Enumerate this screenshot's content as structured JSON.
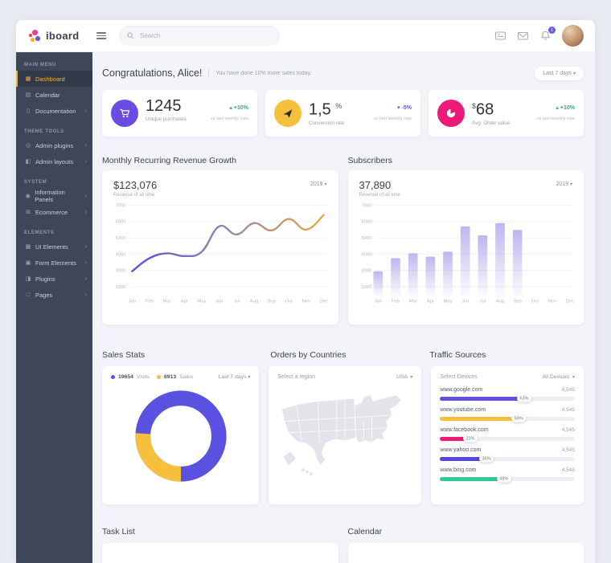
{
  "topbar": {
    "brand": "iboard",
    "search_placeholder": "Search",
    "badge_count": "1",
    "icons": [
      "messages-icon",
      "mail-icon",
      "bell-icon",
      "avatar"
    ]
  },
  "sidebar": {
    "sections": [
      {
        "title": "MAIN MENU",
        "items": [
          {
            "label": "Dashboard",
            "icon": "dashboard-icon",
            "active": true,
            "arrow": false
          },
          {
            "label": "Calendar",
            "icon": "calendar-icon",
            "active": false,
            "arrow": false
          },
          {
            "label": "Documentation",
            "icon": "file-icon",
            "active": false,
            "arrow": true
          }
        ]
      },
      {
        "title": "THEME TOOLS",
        "items": [
          {
            "label": "Admin plugins",
            "icon": "disc-icon",
            "active": false,
            "arrow": true
          },
          {
            "label": "Admin layouts",
            "icon": "layout-icon",
            "active": false,
            "arrow": true
          }
        ]
      },
      {
        "title": "SYSTEM",
        "items": [
          {
            "label": "Information Panels",
            "icon": "info-icon",
            "active": false,
            "arrow": true
          },
          {
            "label": "Ecommerce",
            "icon": "cart-icon",
            "active": false,
            "arrow": true
          }
        ]
      },
      {
        "title": "ELEMENTS",
        "items": [
          {
            "label": "UI Elements",
            "icon": "grid-icon",
            "active": false,
            "arrow": true
          },
          {
            "label": "Form Elements",
            "icon": "form-icon",
            "active": false,
            "arrow": true
          },
          {
            "label": "Plugins",
            "icon": "plugin-icon",
            "active": false,
            "arrow": true
          },
          {
            "label": "Pages",
            "icon": "pages-icon",
            "active": false,
            "arrow": true
          }
        ]
      }
    ]
  },
  "header": {
    "greeting": "Congratulations, Alice!",
    "subtext": "You have done 10% more sales today.",
    "period": "Last 7 days"
  },
  "stats": [
    {
      "value": "1245",
      "label": "Unique purchases",
      "delta": "+10%",
      "direction": "up",
      "note": "vs last weekly rate",
      "icon": "cart-stat-icon",
      "color": "#6a4be4"
    },
    {
      "value": "1,5",
      "unit": "%",
      "label": "Conversion rate",
      "delta": "-5%",
      "direction": "down",
      "note": "vs last weekly rate",
      "icon": "rocket-stat-icon",
      "color": "#f6bf3c"
    },
    {
      "prefix": "$",
      "value": "68",
      "label": "Avg. Order value",
      "delta": "+10%",
      "direction": "up",
      "note": "vs last weekly rate",
      "icon": "pie-stat-icon",
      "color": "#ed1a78"
    }
  ],
  "mrr": {
    "title": "Monthly Recurring Revenue Growth",
    "total": "$123,076",
    "subtitle": "Revenue of all time",
    "year": "2019"
  },
  "subscribers": {
    "title": "Subscribers",
    "total": "37,890",
    "subtitle": "Revenue of all time",
    "year": "2019"
  },
  "chart_data": [
    {
      "type": "line",
      "title": "Monthly Recurring Revenue Growth",
      "x": [
        "Jan",
        "Feb",
        "Mar",
        "Apr",
        "May",
        "Jun",
        "Jul",
        "Aug",
        "Sep",
        "Oct",
        "Nov",
        "Dec"
      ],
      "values": [
        2950,
        3750,
        4050,
        3880,
        4150,
        5700,
        5200,
        5900,
        5450,
        6150,
        5500,
        6400
      ],
      "ylim": [
        2000,
        7000
      ],
      "yticks": [
        7000,
        6000,
        5000,
        4000,
        3000,
        2000
      ],
      "line_gradient": [
        "#5a4ce0",
        "#9187a8",
        "#e9a93f"
      ],
      "grid": true
    },
    {
      "type": "bar",
      "title": "Subscribers",
      "x": [
        "Jan",
        "Feb",
        "Mar",
        "Apr",
        "May",
        "Jun",
        "Jul",
        "Aug",
        "Sep",
        "Oct",
        "Nov",
        "Dec"
      ],
      "values": [
        2950,
        3750,
        4050,
        3850,
        4150,
        5700,
        5150,
        5900,
        5480,
        null,
        null,
        null
      ],
      "ylim": [
        2000,
        7000
      ],
      "yticks": [
        7000,
        6000,
        5000,
        4000,
        3000,
        2000
      ],
      "bar_color": "#b9b3ee",
      "grid": true
    },
    {
      "type": "donut",
      "title": "Sales Stats",
      "series": [
        {
          "name": "Visits",
          "value": 19654,
          "color": "#5b51e0"
        },
        {
          "name": "Sales",
          "value": 6913,
          "color": "#f6bf3c"
        }
      ]
    }
  ],
  "sales": {
    "title": "Sales Stats",
    "legend": [
      {
        "value": "19654",
        "label": "Visits",
        "color": "#5b51e0"
      },
      {
        "value": "6913",
        "label": "Sales",
        "color": "#f6bf3c"
      }
    ],
    "period": "Last 7 days"
  },
  "orders": {
    "title": "Orders by Countries",
    "label": "Select a region",
    "region": "USA"
  },
  "traffic": {
    "title": "Traffic Sources",
    "label": "Select Devices",
    "device": "All Devices",
    "rows": [
      {
        "name": "www.google.com",
        "value": "4,545",
        "pct": 63,
        "color": "#5f51e6"
      },
      {
        "name": "www.youtube.com",
        "value": "4,545",
        "pct": 59,
        "color": "#f6bf3c"
      },
      {
        "name": "www.facebook.com",
        "value": "4,545",
        "pct": 23,
        "color": "#ed1a78"
      },
      {
        "name": "www.yahoo.com",
        "value": "4,545",
        "pct": 35,
        "color": "#5348d8"
      },
      {
        "name": "www.bing.com",
        "value": "4,545",
        "pct": 48,
        "color": "#2fcb97"
      }
    ]
  },
  "tasks": {
    "title": "Task List"
  },
  "calendar": {
    "title": "Calendar"
  }
}
